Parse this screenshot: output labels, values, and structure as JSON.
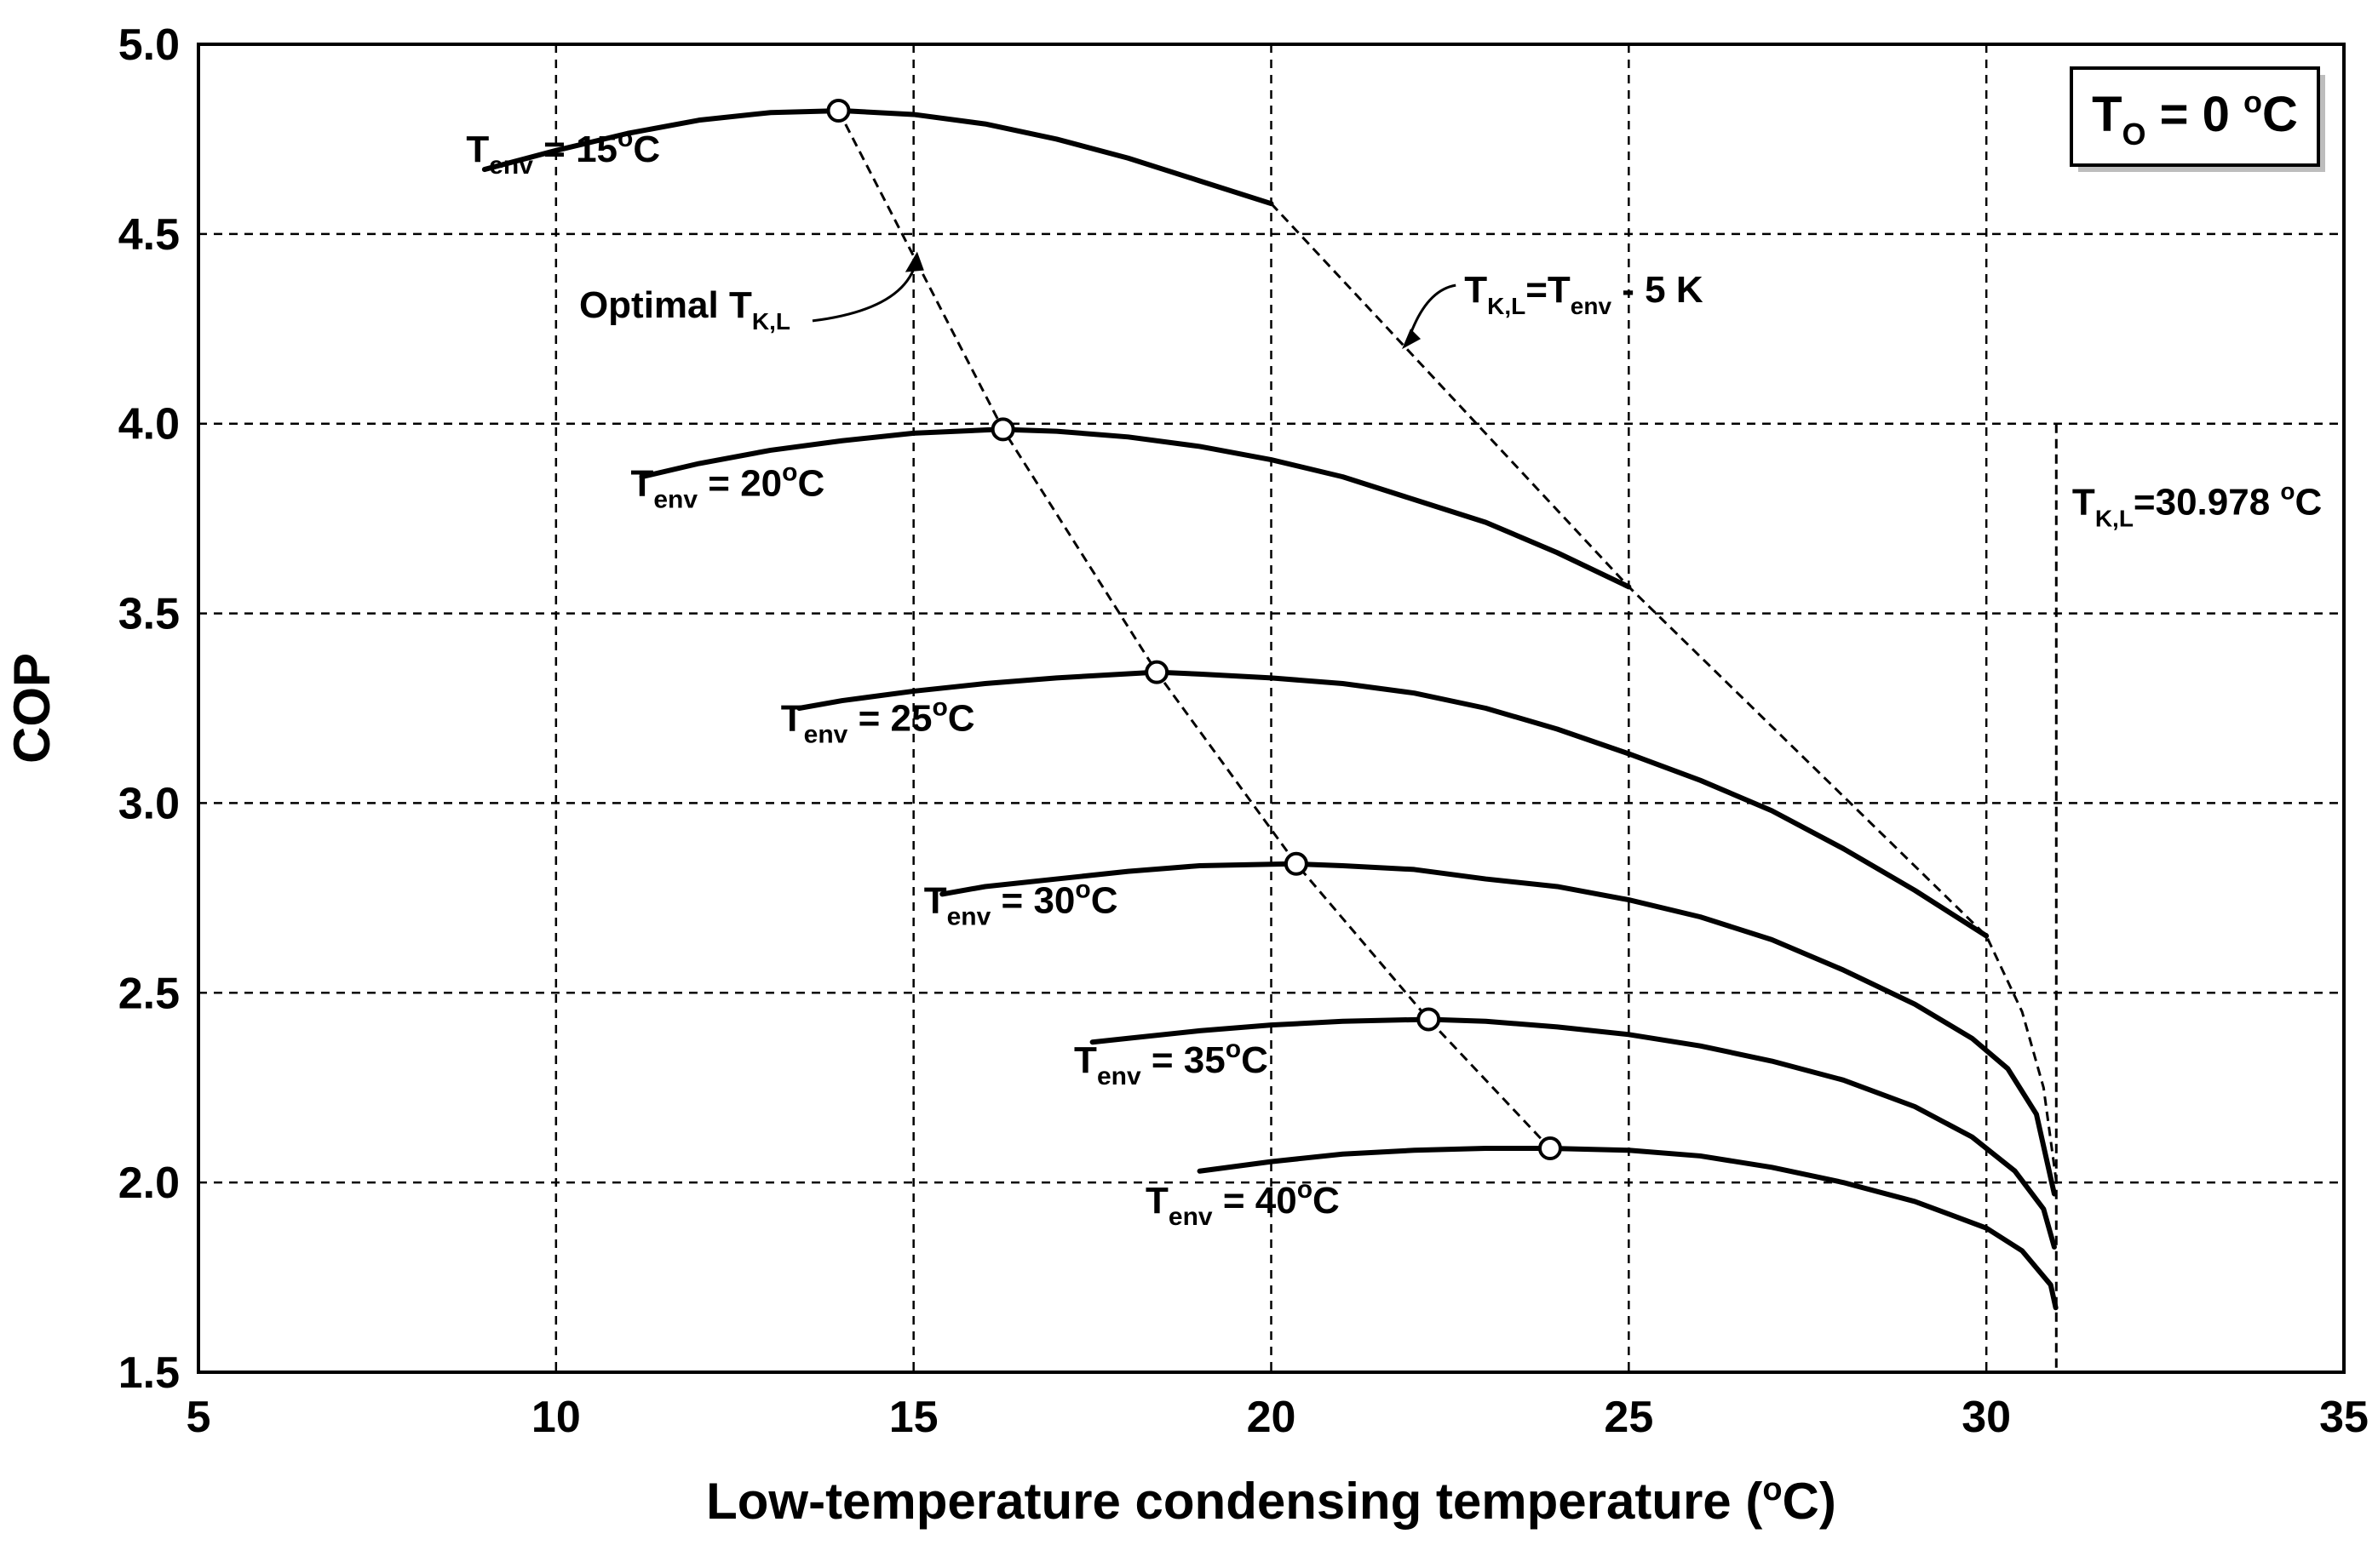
{
  "chart_data": {
    "type": "line",
    "xlabel_main": "Low-temperature condensing temperature (",
    "xlabel_sup": "o",
    "xlabel_end": "C)",
    "ylabel": "COP",
    "xlim": [
      5,
      35
    ],
    "ylim": [
      1.5,
      5.0
    ],
    "xticks": [
      "5",
      "10",
      "15",
      "20",
      "25",
      "30",
      "35"
    ],
    "yticks": [
      "1.5",
      "2.0",
      "2.5",
      "3.0",
      "3.5",
      "4.0",
      "4.5",
      "5.0"
    ],
    "xtick_values": [
      5,
      10,
      15,
      20,
      25,
      30,
      35
    ],
    "ytick_values": [
      1.5,
      2.0,
      2.5,
      3.0,
      3.5,
      4.0,
      4.5,
      5.0
    ],
    "grid": true,
    "legend_box": {
      "main": "T",
      "sub": "O",
      "rest": " = 0 ",
      "sup": "o",
      "end": "C"
    },
    "series": [
      {
        "name": "Tenv = 15°C",
        "label_main": "T",
        "label_sub": "env",
        "label_rest": " = 15",
        "label_sup": "o",
        "label_end": "C",
        "label_at": [
          10.1,
          4.69
        ],
        "x": [
          9.0,
          10.0,
          11.0,
          12.0,
          13.0,
          14.0,
          15.0,
          16.0,
          17.0,
          18.0,
          19.0,
          20.0
        ],
        "y": [
          4.67,
          4.72,
          4.765,
          4.8,
          4.82,
          4.825,
          4.815,
          4.79,
          4.75,
          4.7,
          4.64,
          4.58
        ]
      },
      {
        "name": "Tenv = 20°C",
        "label_main": "T",
        "label_sub": "env",
        "label_rest": " = 20",
        "label_sup": "o",
        "label_end": "C",
        "label_at": [
          12.4,
          3.81
        ],
        "x": [
          11.2,
          12.0,
          13.0,
          14.0,
          15.0,
          16.2,
          17.0,
          18.0,
          19.0,
          20.0,
          21.0,
          22.0,
          23.0,
          24.0,
          25.0
        ],
        "y": [
          3.86,
          3.895,
          3.93,
          3.955,
          3.975,
          3.985,
          3.98,
          3.965,
          3.94,
          3.905,
          3.86,
          3.8,
          3.74,
          3.66,
          3.57
        ]
      },
      {
        "name": "Tenv = 25°C",
        "label_main": "T",
        "label_sub": "env",
        "label_rest": " = 25",
        "label_sup": "o",
        "label_end": "C",
        "label_at": [
          14.5,
          3.19
        ],
        "x": [
          13.4,
          14.0,
          15.0,
          16.0,
          17.0,
          18.4,
          19.0,
          20.0,
          21.0,
          22.0,
          23.0,
          24.0,
          25.0,
          26.0,
          27.0,
          28.0,
          29.0,
          30.0
        ],
        "y": [
          3.25,
          3.27,
          3.295,
          3.315,
          3.33,
          3.345,
          3.34,
          3.33,
          3.315,
          3.29,
          3.25,
          3.195,
          3.13,
          3.06,
          2.98,
          2.88,
          2.77,
          2.65
        ]
      },
      {
        "name": "Tenv = 30°C",
        "label_main": "T",
        "label_sub": "env",
        "label_rest": " = 30",
        "label_sup": "o",
        "label_end": "C",
        "label_at": [
          16.5,
          2.71
        ],
        "x": [
          15.4,
          16.0,
          17.0,
          18.0,
          19.0,
          20.3,
          21.0,
          22.0,
          23.0,
          24.0,
          25.0,
          26.0,
          27.0,
          28.0,
          29.0,
          29.8,
          30.3,
          30.7,
          30.95
        ],
        "y": [
          2.76,
          2.78,
          2.8,
          2.82,
          2.835,
          2.84,
          2.835,
          2.825,
          2.8,
          2.78,
          2.745,
          2.7,
          2.64,
          2.56,
          2.47,
          2.38,
          2.3,
          2.18,
          1.97
        ]
      },
      {
        "name": "Tenv = 35°C",
        "label_main": "T",
        "label_sub": "env",
        "label_rest": " = 35",
        "label_sup": "o",
        "label_end": "C",
        "label_at": [
          18.6,
          2.29
        ],
        "x": [
          17.5,
          18.0,
          19.0,
          20.0,
          21.0,
          22.2,
          23.0,
          24.0,
          25.0,
          26.0,
          27.0,
          28.0,
          29.0,
          29.8,
          30.4,
          30.8,
          30.95
        ],
        "y": [
          2.37,
          2.38,
          2.4,
          2.415,
          2.425,
          2.43,
          2.425,
          2.41,
          2.39,
          2.36,
          2.32,
          2.27,
          2.2,
          2.12,
          2.03,
          1.93,
          1.83
        ]
      },
      {
        "name": "Tenv = 40°C",
        "label_main": "T",
        "label_sub": "env",
        "label_rest": " = 40",
        "label_sup": "o",
        "label_end": "C",
        "label_at": [
          19.6,
          1.92
        ],
        "x": [
          19.0,
          20.0,
          21.0,
          22.0,
          23.0,
          23.9,
          25.0,
          26.0,
          27.0,
          28.0,
          29.0,
          30.0,
          30.5,
          30.9,
          30.97
        ],
        "y": [
          2.03,
          2.055,
          2.075,
          2.085,
          2.09,
          2.09,
          2.085,
          2.07,
          2.04,
          2.0,
          1.95,
          1.88,
          1.82,
          1.73,
          1.67
        ]
      }
    ],
    "optimal_points": {
      "x": [
        13.95,
        16.25,
        18.4,
        20.35,
        22.2,
        23.9
      ],
      "y": [
        4.825,
        3.985,
        3.345,
        2.84,
        2.43,
        2.09
      ]
    },
    "limit_line": {
      "x": [
        20.0,
        25.0,
        30.0,
        30.5,
        30.8,
        30.98
      ],
      "y": [
        4.58,
        3.57,
        2.65,
        2.45,
        2.25,
        2.0
      ]
    },
    "vertical_line_x": 30.978,
    "annotations": {
      "optimal": {
        "main": "Optimal T",
        "sub": "K,L",
        "at": [
          11.8,
          4.28
        ],
        "arrow_to": [
          15.05,
          4.44
        ]
      },
      "limit": {
        "main": "T",
        "sub1": "K,L",
        "mid": "=T",
        "sub2": "env",
        "rest": " - 5 K",
        "at": [
          22.7,
          4.32
        ],
        "arrow_to": [
          21.9,
          4.21
        ]
      },
      "vline": {
        "main": "T",
        "sub": "K,L",
        "rest": "=30.978 ",
        "sup": "o",
        "end": "C",
        "at": [
          31.2,
          3.76
        ]
      }
    }
  }
}
